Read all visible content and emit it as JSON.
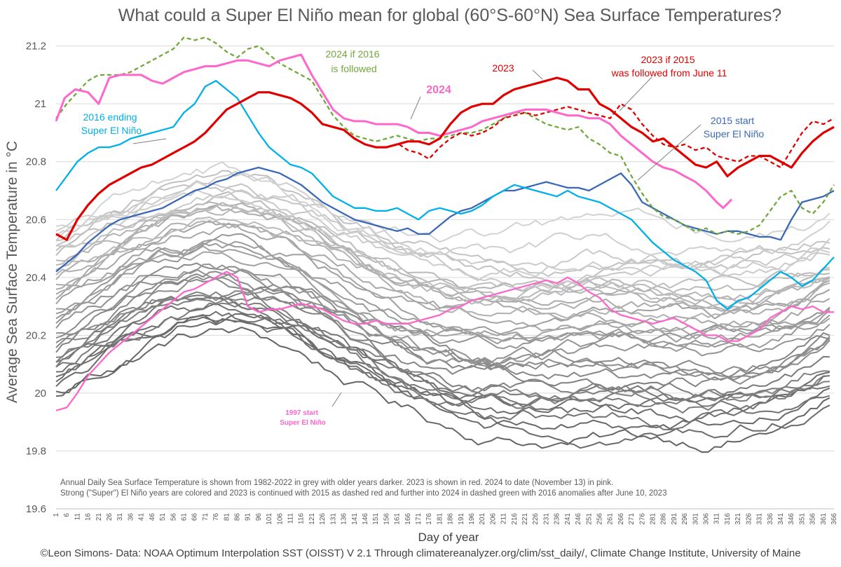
{
  "chart_data": {
    "type": "line",
    "title": "What could a Super El Niño mean for global (60°S-60°N) Sea Surface Temperatures?",
    "xlabel": "Day of year",
    "ylabel": "Average Sea Surface Temperature in °C",
    "ylim": [
      19.6,
      21.25
    ],
    "xlim": [
      1,
      366
    ],
    "yticks": [
      19.6,
      19.8,
      20,
      20.2,
      20.4,
      20.6,
      20.8,
      21,
      21.2
    ],
    "grid": true,
    "notes": [
      "Annual Daily Sea Surface Temperature is shown from 1982-2022 in grey with older years darker. 2023 is shown in red. 2024 to date (November 13) in pink.",
      "Strong (\"Super\") El Niño years are colored and 2023 is continued with 2015 as dashed red and further into 2024 in dashed green with 2016 anomalies after June 10, 2023"
    ],
    "footer": "©Leon Simons- Data: NOAA Optimum Interpolation SST (OISST) V 2.1 Through climatereanalyzer.org/clim/sst_daily/, Climate Change Institute, University of Maine",
    "annotations": {
      "a2024": "2024",
      "a2023": "2023",
      "a2024if2016": [
        "2024 if 2016",
        "is followed"
      ],
      "a2023if2015": [
        "2023 if 2015",
        "was followed from June 11"
      ],
      "a2016": [
        "2016 ending",
        "Super El Niño"
      ],
      "a2015": [
        "2015 start",
        "Super El Niño"
      ],
      "a1997": [
        "1997 start",
        "Super El Niño"
      ]
    },
    "series": [
      {
        "name": "2024",
        "color": "#ff66cc",
        "style": "solid",
        "x": [
          1,
          5,
          10,
          16,
          21,
          26,
          31,
          36,
          41,
          46,
          51,
          56,
          61,
          66,
          71,
          76,
          81,
          86,
          91,
          96,
          101,
          106,
          111,
          116,
          121,
          126,
          131,
          136,
          141,
          146,
          151,
          156,
          161,
          166,
          171,
          176,
          181,
          186,
          191,
          196,
          201,
          206,
          211,
          216,
          221,
          226,
          231,
          236,
          241,
          246,
          251,
          256,
          261,
          266,
          271,
          276,
          281,
          286,
          291,
          296,
          301,
          306,
          311,
          314,
          318
        ],
        "y": [
          20.94,
          21.02,
          21.05,
          21.04,
          21.0,
          21.09,
          21.1,
          21.1,
          21.1,
          21.08,
          21.07,
          21.09,
          21.11,
          21.12,
          21.13,
          21.13,
          21.14,
          21.15,
          21.15,
          21.14,
          21.13,
          21.15,
          21.16,
          21.17,
          21.1,
          21.04,
          20.98,
          20.95,
          20.94,
          20.94,
          20.93,
          20.93,
          20.93,
          20.92,
          20.9,
          20.9,
          20.89,
          20.9,
          20.91,
          20.92,
          20.94,
          20.95,
          20.96,
          20.97,
          20.98,
          20.98,
          20.98,
          20.97,
          20.96,
          20.96,
          20.95,
          20.95,
          20.93,
          20.89,
          20.86,
          20.83,
          20.8,
          20.78,
          20.77,
          20.75,
          20.73,
          20.7,
          20.66,
          20.64,
          20.67
        ]
      },
      {
        "name": "2023",
        "color": "#e00000",
        "style": "solid",
        "x": [
          1,
          6,
          11,
          16,
          21,
          26,
          31,
          36,
          41,
          46,
          51,
          56,
          61,
          66,
          71,
          76,
          81,
          86,
          91,
          96,
          101,
          106,
          111,
          116,
          121,
          126,
          131,
          136,
          141,
          146,
          151,
          156,
          161,
          166,
          171,
          176,
          181,
          186,
          191,
          196,
          201,
          206,
          211,
          216,
          221,
          226,
          231,
          236,
          241,
          246,
          251,
          256,
          261,
          266,
          271,
          276,
          281,
          286,
          291,
          296,
          301,
          306,
          311,
          316,
          321,
          326,
          331,
          336,
          341,
          346,
          351,
          356,
          361,
          366
        ],
        "y": [
          20.55,
          20.53,
          20.6,
          20.65,
          20.69,
          20.72,
          20.74,
          20.76,
          20.78,
          20.79,
          20.81,
          20.83,
          20.85,
          20.87,
          20.9,
          20.94,
          20.98,
          21.0,
          21.02,
          21.04,
          21.04,
          21.03,
          21.02,
          21.0,
          20.97,
          20.93,
          20.92,
          20.91,
          20.88,
          20.86,
          20.85,
          20.85,
          20.86,
          20.87,
          20.87,
          20.86,
          20.88,
          20.93,
          20.97,
          20.99,
          21.0,
          21.0,
          21.03,
          21.05,
          21.06,
          21.07,
          21.08,
          21.09,
          21.08,
          21.05,
          21.05,
          21.0,
          20.98,
          20.95,
          20.92,
          20.9,
          20.87,
          20.88,
          20.85,
          20.82,
          20.79,
          20.78,
          20.8,
          20.75,
          20.78,
          20.8,
          20.82,
          20.82,
          20.8,
          20.78,
          20.83,
          20.87,
          20.9,
          20.92
        ]
      },
      {
        "name": "2023 if 2015 was followed from June 11",
        "color": "#e00000",
        "style": "dashed",
        "x": [
          162,
          166,
          171,
          176,
          181,
          186,
          191,
          196,
          201,
          206,
          211,
          216,
          221,
          226,
          231,
          236,
          241,
          246,
          251,
          256,
          261,
          266,
          271,
          276,
          281,
          286,
          291,
          296,
          301,
          306,
          311,
          316,
          321,
          326,
          331,
          336,
          341,
          346,
          351,
          356,
          361,
          366
        ],
        "y": [
          20.86,
          20.84,
          20.83,
          20.81,
          20.85,
          20.88,
          20.9,
          20.89,
          20.9,
          20.92,
          20.95,
          20.96,
          20.97,
          20.96,
          20.97,
          20.98,
          20.99,
          20.98,
          20.97,
          20.96,
          20.95,
          21.0,
          20.98,
          20.93,
          20.89,
          20.86,
          20.85,
          20.86,
          20.84,
          20.85,
          20.82,
          20.81,
          20.8,
          20.82,
          20.82,
          20.8,
          20.78,
          20.84,
          20.9,
          20.94,
          20.93,
          20.95
        ]
      },
      {
        "name": "2024 if 2016 is followed",
        "color": "#70a83a",
        "style": "dashed",
        "x": [
          1,
          6,
          11,
          16,
          21,
          26,
          31,
          36,
          41,
          46,
          51,
          56,
          61,
          66,
          71,
          76,
          81,
          86,
          91,
          96,
          101,
          106,
          111,
          116,
          121,
          126,
          131,
          136,
          141,
          146,
          151,
          156,
          161,
          166,
          171,
          176,
          181,
          186,
          191,
          196,
          201,
          206,
          211,
          216,
          221,
          226,
          231,
          236,
          241,
          246,
          251,
          256,
          261,
          266,
          271,
          276,
          281,
          286,
          291,
          296,
          301,
          306,
          311,
          316,
          321,
          326,
          331,
          336,
          341,
          346,
          351,
          356,
          361,
          366
        ],
        "y": [
          20.95,
          21.0,
          21.04,
          21.08,
          21.1,
          21.1,
          21.1,
          21.11,
          21.13,
          21.15,
          21.17,
          21.19,
          21.23,
          21.22,
          21.23,
          21.21,
          21.18,
          21.16,
          21.19,
          21.2,
          21.17,
          21.14,
          21.12,
          21.1,
          21.08,
          21.02,
          20.96,
          20.92,
          20.89,
          20.88,
          20.87,
          20.88,
          20.89,
          20.88,
          20.87,
          20.88,
          20.88,
          20.89,
          20.9,
          20.9,
          20.91,
          20.93,
          20.95,
          20.97,
          20.97,
          20.95,
          20.93,
          20.92,
          20.91,
          20.92,
          20.88,
          20.86,
          20.83,
          20.82,
          20.75,
          20.69,
          20.64,
          20.61,
          20.6,
          20.58,
          20.56,
          20.57,
          20.55,
          20.56,
          20.55,
          20.56,
          20.58,
          20.63,
          20.68,
          20.7,
          20.64,
          20.62,
          20.66,
          20.72
        ]
      },
      {
        "name": "2016 ending Super El Niño",
        "color": "#00b0e8",
        "style": "solid",
        "x": [
          1,
          6,
          11,
          16,
          21,
          26,
          31,
          36,
          41,
          46,
          51,
          56,
          61,
          66,
          71,
          76,
          81,
          86,
          91,
          96,
          101,
          106,
          111,
          116,
          121,
          126,
          131,
          136,
          141,
          146,
          151,
          156,
          161,
          166,
          171,
          176,
          181,
          186,
          191,
          196,
          201,
          206,
          211,
          216,
          221,
          226,
          231,
          236,
          241,
          246,
          251,
          256,
          261,
          266,
          271,
          276,
          281,
          286,
          291,
          296,
          301,
          306,
          311,
          316,
          321,
          326,
          331,
          336,
          341,
          346,
          351,
          356,
          361,
          366
        ],
        "y": [
          20.7,
          20.75,
          20.8,
          20.83,
          20.85,
          20.85,
          20.86,
          20.88,
          20.89,
          20.9,
          20.91,
          20.92,
          20.97,
          21.0,
          21.06,
          21.08,
          21.05,
          21.02,
          20.96,
          20.9,
          20.85,
          20.82,
          20.79,
          20.78,
          20.76,
          20.72,
          20.68,
          20.66,
          20.64,
          20.64,
          20.63,
          20.63,
          20.64,
          20.62,
          20.6,
          20.63,
          20.64,
          20.63,
          20.62,
          20.63,
          20.65,
          20.68,
          20.7,
          20.72,
          20.71,
          20.7,
          20.69,
          20.68,
          20.7,
          20.68,
          20.67,
          20.66,
          20.64,
          20.62,
          20.6,
          20.56,
          20.52,
          20.49,
          20.46,
          20.44,
          20.42,
          20.39,
          20.32,
          20.29,
          20.32,
          20.33,
          20.36,
          20.39,
          20.42,
          20.4,
          20.37,
          20.39,
          20.43,
          20.47
        ]
      },
      {
        "name": "2015 start Super El Niño",
        "color": "#3a68b8",
        "style": "solid",
        "x": [
          1,
          6,
          11,
          16,
          21,
          26,
          31,
          36,
          41,
          46,
          51,
          56,
          61,
          66,
          71,
          76,
          81,
          86,
          91,
          96,
          101,
          106,
          111,
          116,
          121,
          126,
          131,
          136,
          141,
          146,
          151,
          156,
          161,
          166,
          171,
          176,
          181,
          186,
          191,
          196,
          201,
          206,
          211,
          216,
          221,
          226,
          231,
          236,
          241,
          246,
          251,
          256,
          261,
          266,
          271,
          276,
          281,
          286,
          291,
          296,
          301,
          306,
          311,
          316,
          321,
          326,
          331,
          336,
          341,
          346,
          351,
          356,
          361,
          366
        ],
        "y": [
          20.42,
          20.45,
          20.48,
          20.52,
          20.55,
          20.58,
          20.6,
          20.61,
          20.62,
          20.63,
          20.64,
          20.66,
          20.68,
          20.7,
          20.71,
          20.73,
          20.74,
          20.76,
          20.77,
          20.78,
          20.77,
          20.76,
          20.74,
          20.72,
          20.69,
          20.66,
          20.64,
          20.62,
          20.6,
          20.59,
          20.58,
          20.57,
          20.56,
          20.57,
          20.55,
          20.55,
          20.58,
          20.61,
          20.63,
          20.64,
          20.66,
          20.68,
          20.7,
          20.7,
          20.71,
          20.72,
          20.73,
          20.72,
          20.71,
          20.71,
          20.7,
          20.72,
          20.74,
          20.76,
          20.72,
          20.66,
          20.64,
          20.62,
          20.6,
          20.58,
          20.57,
          20.56,
          20.55,
          20.56,
          20.56,
          20.55,
          20.54,
          20.54,
          20.53,
          20.6,
          20.66,
          20.67,
          20.68,
          20.7
        ]
      },
      {
        "name": "1997 start Super El Niño",
        "color": "#ff66cc",
        "style": "solid",
        "x": [
          1,
          6,
          11,
          16,
          21,
          26,
          31,
          36,
          41,
          46,
          51,
          56,
          61,
          66,
          71,
          76,
          81,
          86,
          91,
          96,
          101,
          106,
          111,
          116,
          121,
          126,
          131,
          136,
          141,
          146,
          151,
          156,
          161,
          166,
          171,
          176,
          181,
          186,
          191,
          196,
          201,
          206,
          211,
          216,
          221,
          226,
          231,
          236,
          241,
          246,
          251,
          256,
          261,
          266,
          271,
          276,
          281,
          286,
          291,
          296,
          301,
          306,
          311,
          316,
          321,
          326,
          331,
          336,
          341,
          346,
          351,
          356,
          361,
          366
        ],
        "y": [
          19.94,
          19.95,
          20.0,
          20.06,
          20.1,
          20.14,
          20.17,
          20.2,
          20.23,
          20.26,
          20.29,
          20.32,
          20.35,
          20.36,
          20.38,
          20.4,
          20.42,
          20.4,
          20.3,
          20.28,
          20.29,
          20.29,
          20.3,
          20.31,
          20.3,
          20.29,
          20.27,
          20.25,
          20.24,
          20.24,
          20.25,
          20.24,
          20.24,
          20.24,
          20.25,
          20.26,
          20.27,
          20.29,
          20.3,
          20.32,
          20.33,
          20.34,
          20.35,
          20.36,
          20.37,
          20.38,
          20.39,
          20.38,
          20.4,
          20.38,
          20.35,
          20.33,
          20.29,
          20.27,
          20.26,
          20.25,
          20.24,
          20.25,
          20.26,
          20.24,
          20.22,
          20.2,
          20.2,
          20.18,
          20.18,
          20.2,
          20.22,
          20.26,
          20.28,
          20.3,
          20.29,
          20.3,
          20.28,
          20.28
        ]
      }
    ]
  }
}
